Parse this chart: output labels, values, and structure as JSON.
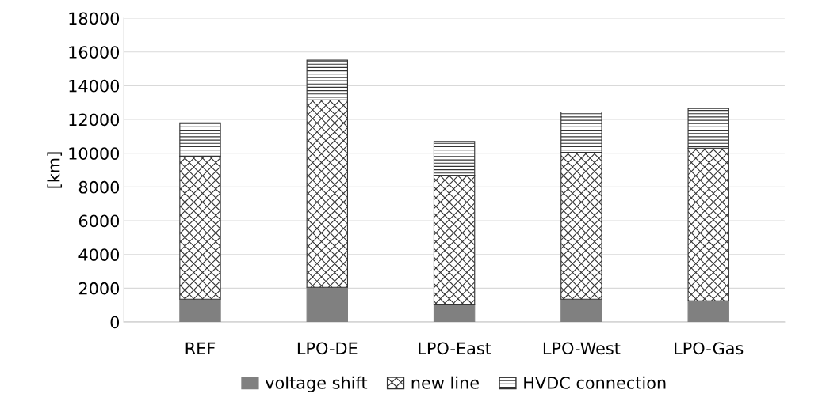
{
  "chart_data": {
    "type": "bar",
    "stacked": true,
    "ylabel": "[km]",
    "categories": [
      "REF",
      "LPO-DE",
      "LPO-East",
      "LPO-West",
      "LPO-Gas"
    ],
    "series": [
      {
        "name": "voltage shift",
        "color": "#808080",
        "values": [
          1350,
          2050,
          1050,
          1350,
          1250
        ]
      },
      {
        "name": "new line",
        "color": "#333333",
        "values": [
          8480,
          11110,
          7650,
          8700,
          9050
        ]
      },
      {
        "name": "HVDC connection",
        "color": "#333333",
        "values": [
          1970,
          2360,
          2000,
          2400,
          2350
        ]
      }
    ],
    "ylim": [
      0,
      18000
    ],
    "yticks": [
      0,
      2000,
      4000,
      6000,
      8000,
      10000,
      12000,
      14000,
      16000,
      18000
    ],
    "grid": "y",
    "legend": "bottom"
  }
}
